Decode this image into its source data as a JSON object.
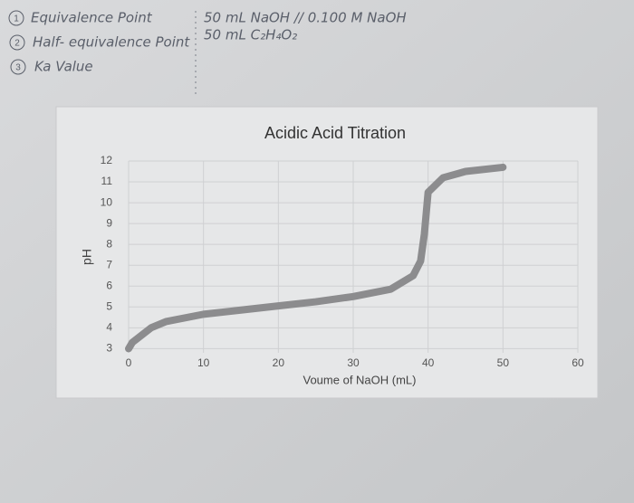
{
  "notes": {
    "items": [
      {
        "number": "1",
        "text": "Equivalence Point"
      },
      {
        "number": "2",
        "text": "Half- equivalence Point"
      },
      {
        "number": "3",
        "text": "Ka Value"
      }
    ],
    "solution": [
      "50 mL NaOH // 0.100 M NaOH",
      "50 mL C₂H₄O₂"
    ]
  },
  "chart_data": {
    "type": "line",
    "title": "Acidic Acid Titration",
    "x_label": "Voume of NaOH (mL)",
    "y_label": "pH",
    "x": [
      0,
      0.5,
      3,
      5,
      10,
      15,
      20,
      25,
      30,
      35,
      38,
      39,
      39.5,
      40,
      42,
      45,
      50
    ],
    "values": [
      3.0,
      3.3,
      4.0,
      4.3,
      4.65,
      4.85,
      5.05,
      5.25,
      5.5,
      5.85,
      6.5,
      7.2,
      8.5,
      10.5,
      11.2,
      11.5,
      11.7
    ],
    "color": "#8c8c8e",
    "xlim": [
      0,
      60
    ],
    "xticks": [
      0,
      10,
      20,
      30,
      40,
      50,
      60
    ],
    "ylim": [
      2.8,
      12
    ],
    "yticks": [
      3,
      4,
      5,
      6,
      7,
      8,
      9,
      10,
      11,
      12
    ],
    "grid": true
  }
}
